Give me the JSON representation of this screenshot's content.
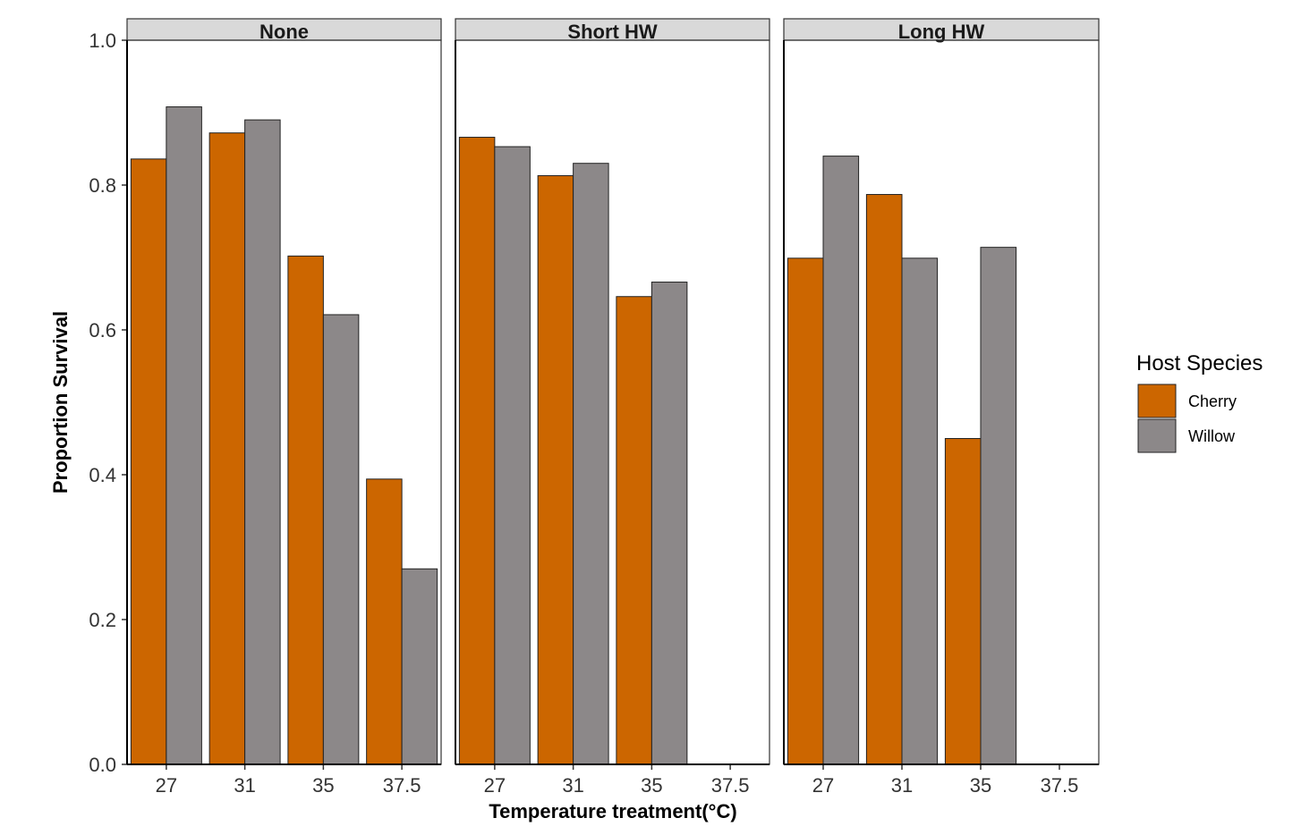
{
  "colors": {
    "cherry": "#cc6600",
    "willow": "#8c8889",
    "strip_bg": "#d9d9d9",
    "bar_outline": "#222222",
    "panel_border": "#333333"
  },
  "chart_data": {
    "type": "bar",
    "ylabel": "Proportion Survival",
    "xlabel": "Temperature treatment(°C)",
    "ylim": [
      0,
      1.0
    ],
    "y_ticks": [
      "0.0",
      "0.2",
      "0.4",
      "0.6",
      "0.8",
      "1.0"
    ],
    "y_tick_values": [
      0,
      0.2,
      0.4,
      0.6,
      0.8,
      1.0
    ],
    "categories": [
      "27",
      "31",
      "35",
      "37.5"
    ],
    "grid": false,
    "legend": {
      "title": "Host Species",
      "placement": "right",
      "entries": [
        "Cherry",
        "Willow"
      ]
    },
    "panels": [
      {
        "label": "None",
        "series": [
          {
            "name": "Cherry",
            "values": [
              0.836,
              0.872,
              0.702,
              0.394
            ]
          },
          {
            "name": "Willow",
            "values": [
              0.908,
              0.89,
              0.621,
              0.27
            ]
          }
        ]
      },
      {
        "label": "Short HW",
        "series": [
          {
            "name": "Cherry",
            "values": [
              0.866,
              0.813,
              0.646,
              null
            ]
          },
          {
            "name": "Willow",
            "values": [
              0.853,
              0.83,
              0.666,
              null
            ]
          }
        ]
      },
      {
        "label": "Long HW",
        "series": [
          {
            "name": "Cherry",
            "values": [
              0.699,
              0.787,
              0.45,
              null
            ]
          },
          {
            "name": "Willow",
            "values": [
              0.84,
              0.699,
              0.714,
              null
            ]
          }
        ]
      }
    ]
  }
}
